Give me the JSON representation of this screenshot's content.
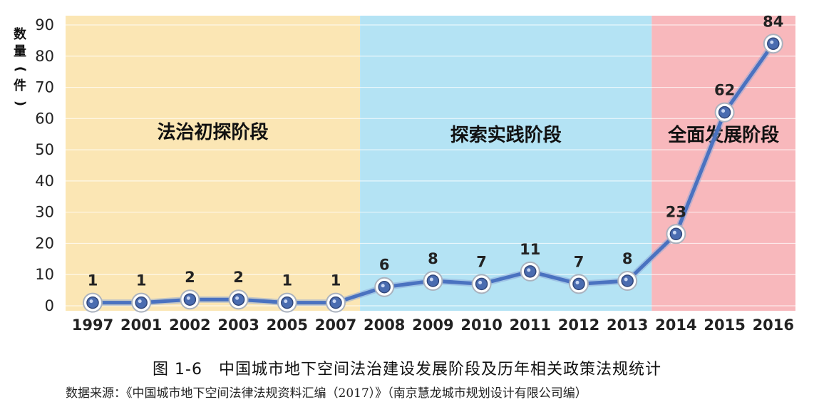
{
  "chart_data": {
    "type": "line",
    "categories": [
      "1997",
      "2001",
      "2002",
      "2003",
      "2005",
      "2007",
      "2008",
      "2009",
      "2010",
      "2011",
      "2012",
      "2013",
      "2014",
      "2015",
      "2016"
    ],
    "values": [
      1,
      1,
      2,
      2,
      1,
      1,
      6,
      8,
      7,
      11,
      7,
      8,
      23,
      62,
      84
    ],
    "ylabel_chars": [
      "数",
      "量",
      "(",
      "件",
      ")"
    ],
    "ylim": [
      0,
      90
    ],
    "yticks": [
      0,
      10,
      20,
      30,
      40,
      50,
      60,
      70,
      80,
      90
    ],
    "phases": [
      {
        "label": "法治初探阶段",
        "start_index": 0,
        "end_index": 5,
        "color": "#fbe6b4"
      },
      {
        "label": "探索实践阶段",
        "start_index": 6,
        "end_index": 11,
        "color": "#b4e3f4"
      },
      {
        "label": "全面发展阶段",
        "start_index": 12,
        "end_index": 14,
        "color": "#f8b8bc"
      }
    ],
    "line_color": "#4a72c0"
  },
  "caption": "图 1-6　中国城市地下空间法治建设发展阶段及历年相关政策法规统计",
  "source": "数据来源：《中国城市地下空间法律法规资料汇编（2017）》（南京慧龙城市规划设计有限公司编）"
}
